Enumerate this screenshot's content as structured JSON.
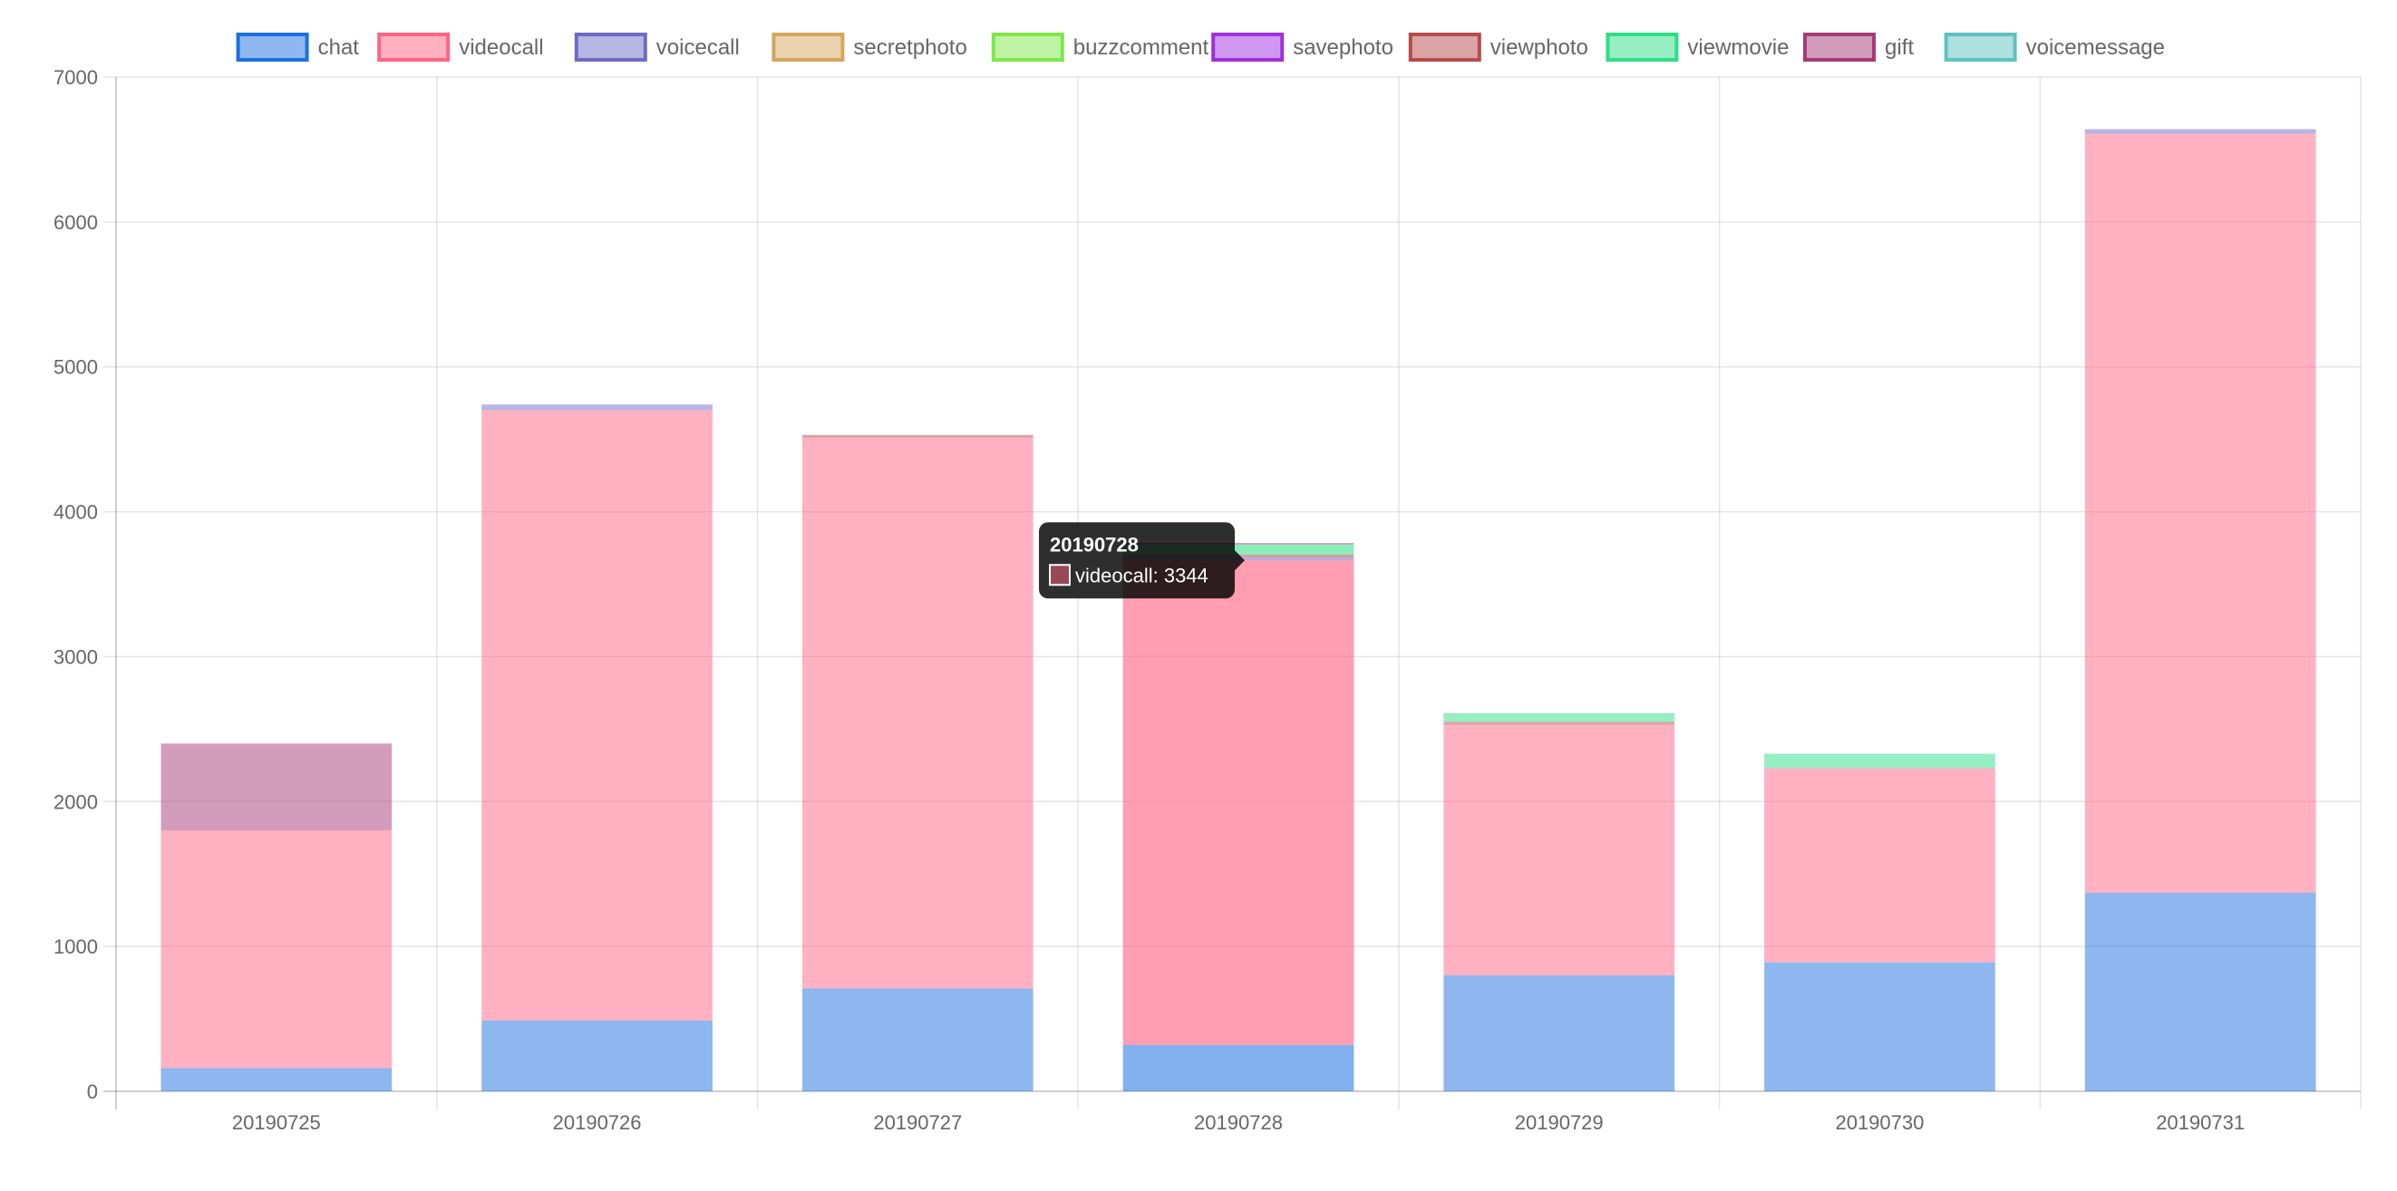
{
  "chart_data": {
    "type": "bar",
    "stacked": true,
    "categories": [
      "20190725",
      "20190726",
      "20190727",
      "20190728",
      "20190729",
      "20190730",
      "20190731"
    ],
    "ylim": [
      0,
      7000
    ],
    "yticks": [
      0,
      1000,
      2000,
      3000,
      4000,
      5000,
      6000,
      7000
    ],
    "grid": true,
    "legend_position": "top",
    "series": [
      {
        "name": "chat",
        "color": "#1e6fe0",
        "values": [
          160,
          490,
          710,
          320,
          800,
          890,
          1370
        ]
      },
      {
        "name": "videocall",
        "color": "#ff6384",
        "values": [
          1640,
          4210,
          3800,
          3344,
          1730,
          1340,
          5240
        ]
      },
      {
        "name": "voicecall",
        "color": "#6f6bc4",
        "values": [
          0,
          40,
          0,
          20,
          0,
          0,
          30
        ]
      },
      {
        "name": "secretphoto",
        "color": "#d4a65a",
        "values": [
          0,
          0,
          0,
          0,
          0,
          0,
          0
        ]
      },
      {
        "name": "buzzcomment",
        "color": "#7ee84a",
        "values": [
          0,
          0,
          0,
          0,
          0,
          0,
          0
        ]
      },
      {
        "name": "savephoto",
        "color": "#a12fe0",
        "values": [
          0,
          0,
          0,
          0,
          0,
          0,
          0
        ]
      },
      {
        "name": "viewphoto",
        "color": "#b84a4a",
        "values": [
          0,
          0,
          20,
          20,
          20,
          0,
          0
        ]
      },
      {
        "name": "viewmovie",
        "color": "#2ede85",
        "values": [
          0,
          0,
          0,
          70,
          60,
          100,
          0
        ]
      },
      {
        "name": "gift",
        "color": "#a83a76",
        "values": [
          600,
          0,
          0,
          10,
          0,
          0,
          0
        ]
      },
      {
        "name": "voicemessage",
        "color": "#5ec2bf",
        "values": [
          0,
          0,
          0,
          0,
          0,
          0,
          0
        ]
      }
    ],
    "tooltip": {
      "title": "20190728",
      "series": "videocall",
      "value": 3344,
      "text": "videocall: 3344",
      "category_index": 3
    }
  }
}
